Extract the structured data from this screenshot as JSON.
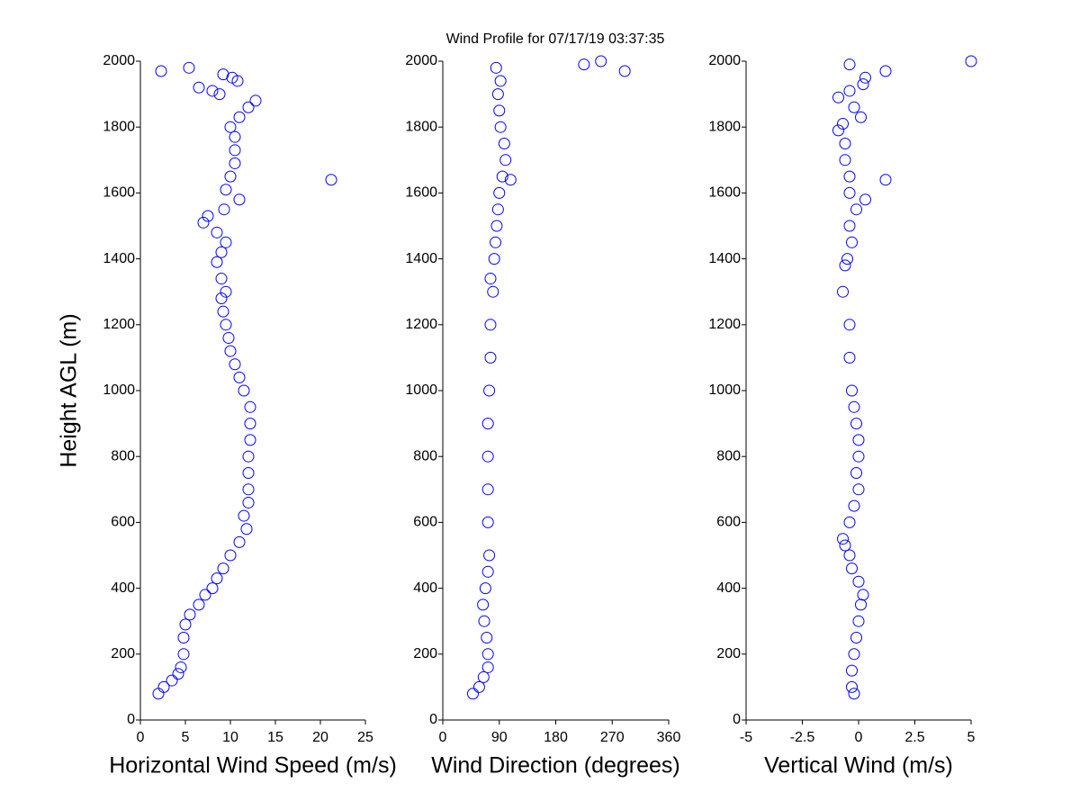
{
  "chart_data": [
    {
      "type": "scatter",
      "title": "Wind Profile for  07/17/19 03:37:35",
      "xlabel": "Horizontal Wind Speed (m/s)",
      "ylabel": "Height AGL (m)",
      "color": "#0000ff",
      "xlim": [
        0,
        25
      ],
      "xticks": [
        0,
        5,
        10,
        15,
        20,
        25
      ],
      "ylim": [
        0,
        2000
      ],
      "yticks": [
        0,
        200,
        400,
        600,
        800,
        1000,
        1200,
        1400,
        1600,
        1800,
        2000
      ],
      "x": [
        2,
        2.6,
        3.5,
        4.2,
        4.5,
        4.8,
        4.8,
        5,
        5.5,
        6.5,
        7.2,
        8,
        8.5,
        9.2,
        10,
        11,
        11.8,
        11.5,
        12,
        12,
        12,
        12,
        12.2,
        12.2,
        12.2,
        11.5,
        11,
        10.5,
        10,
        9.8,
        9.5,
        9.2,
        9,
        9.5,
        9,
        8.5,
        9,
        9.5,
        8.5,
        7,
        7.5,
        9.3,
        11,
        9.5,
        21.2,
        10,
        10.5,
        10.5,
        10.5,
        10,
        11,
        12,
        12.8,
        8.8,
        8,
        6.5,
        10.8,
        10.2,
        9.2,
        2.3,
        5.4
      ],
      "y": [
        80,
        100,
        120,
        140,
        160,
        200,
        250,
        290,
        320,
        350,
        380,
        400,
        430,
        460,
        500,
        540,
        580,
        620,
        660,
        700,
        750,
        800,
        850,
        900,
        950,
        1000,
        1040,
        1080,
        1120,
        1160,
        1200,
        1240,
        1280,
        1300,
        1340,
        1390,
        1420,
        1450,
        1480,
        1510,
        1530,
        1550,
        1580,
        1610,
        1640,
        1650,
        1690,
        1730,
        1770,
        1800,
        1830,
        1860,
        1880,
        1900,
        1910,
        1920,
        1940,
        1950,
        1960,
        1970,
        1980
      ]
    },
    {
      "type": "scatter",
      "xlabel": "Wind Direction (degrees)",
      "color": "#0000ff",
      "xlim": [
        0,
        360
      ],
      "xticks": [
        0,
        90,
        180,
        270,
        360
      ],
      "ylim": [
        0,
        2000
      ],
      "yticks": [
        0,
        200,
        400,
        600,
        800,
        1000,
        1200,
        1400,
        1600,
        1800,
        2000
      ],
      "x": [
        48,
        58,
        65,
        72,
        72,
        70,
        66,
        64,
        68,
        72,
        74,
        72,
        72,
        72,
        72,
        74,
        76,
        76,
        80,
        76,
        82,
        84,
        86,
        88,
        90,
        108,
        95,
        100,
        98,
        92,
        90,
        88,
        92,
        290,
        85,
        225,
        252
      ],
      "y": [
        80,
        100,
        130,
        160,
        200,
        250,
        300,
        350,
        400,
        450,
        500,
        600,
        700,
        800,
        900,
        1000,
        1100,
        1200,
        1300,
        1340,
        1400,
        1450,
        1500,
        1550,
        1600,
        1640,
        1650,
        1700,
        1750,
        1800,
        1850,
        1900,
        1940,
        1970,
        1980,
        1990,
        2000
      ]
    },
    {
      "type": "scatter",
      "xlabel": "Vertical Wind (m/s)",
      "color": "#0000ff",
      "xlim": [
        -5,
        5
      ],
      "xticks": [
        -5,
        -2.5,
        0,
        2.5,
        5
      ],
      "ylim": [
        0,
        2000
      ],
      "yticks": [
        0,
        200,
        400,
        600,
        800,
        1000,
        1200,
        1400,
        1600,
        1800,
        2000
      ],
      "x": [
        -0.2,
        -0.3,
        -0.3,
        -0.2,
        -0.1,
        0,
        0.1,
        0.2,
        0,
        -0.3,
        -0.4,
        -0.6,
        -0.7,
        -0.4,
        -0.2,
        0,
        -0.1,
        0,
        0,
        -0.1,
        -0.2,
        -0.3,
        -0.4,
        -0.4,
        -0.7,
        -0.6,
        -0.5,
        -0.3,
        -0.4,
        -0.1,
        0.3,
        -0.4,
        1.2,
        -0.4,
        -0.6,
        -0.6,
        -0.9,
        -0.7,
        0.1,
        -0.2,
        -0.9,
        -0.4,
        0.2,
        0.3,
        1.2,
        -0.4,
        5
      ],
      "y": [
        80,
        100,
        150,
        200,
        250,
        300,
        350,
        380,
        420,
        460,
        500,
        530,
        550,
        600,
        650,
        700,
        750,
        800,
        850,
        900,
        950,
        1000,
        1100,
        1200,
        1300,
        1380,
        1400,
        1450,
        1500,
        1550,
        1580,
        1600,
        1640,
        1650,
        1700,
        1750,
        1790,
        1810,
        1830,
        1860,
        1890,
        1910,
        1930,
        1950,
        1970,
        1990,
        2000
      ]
    }
  ]
}
